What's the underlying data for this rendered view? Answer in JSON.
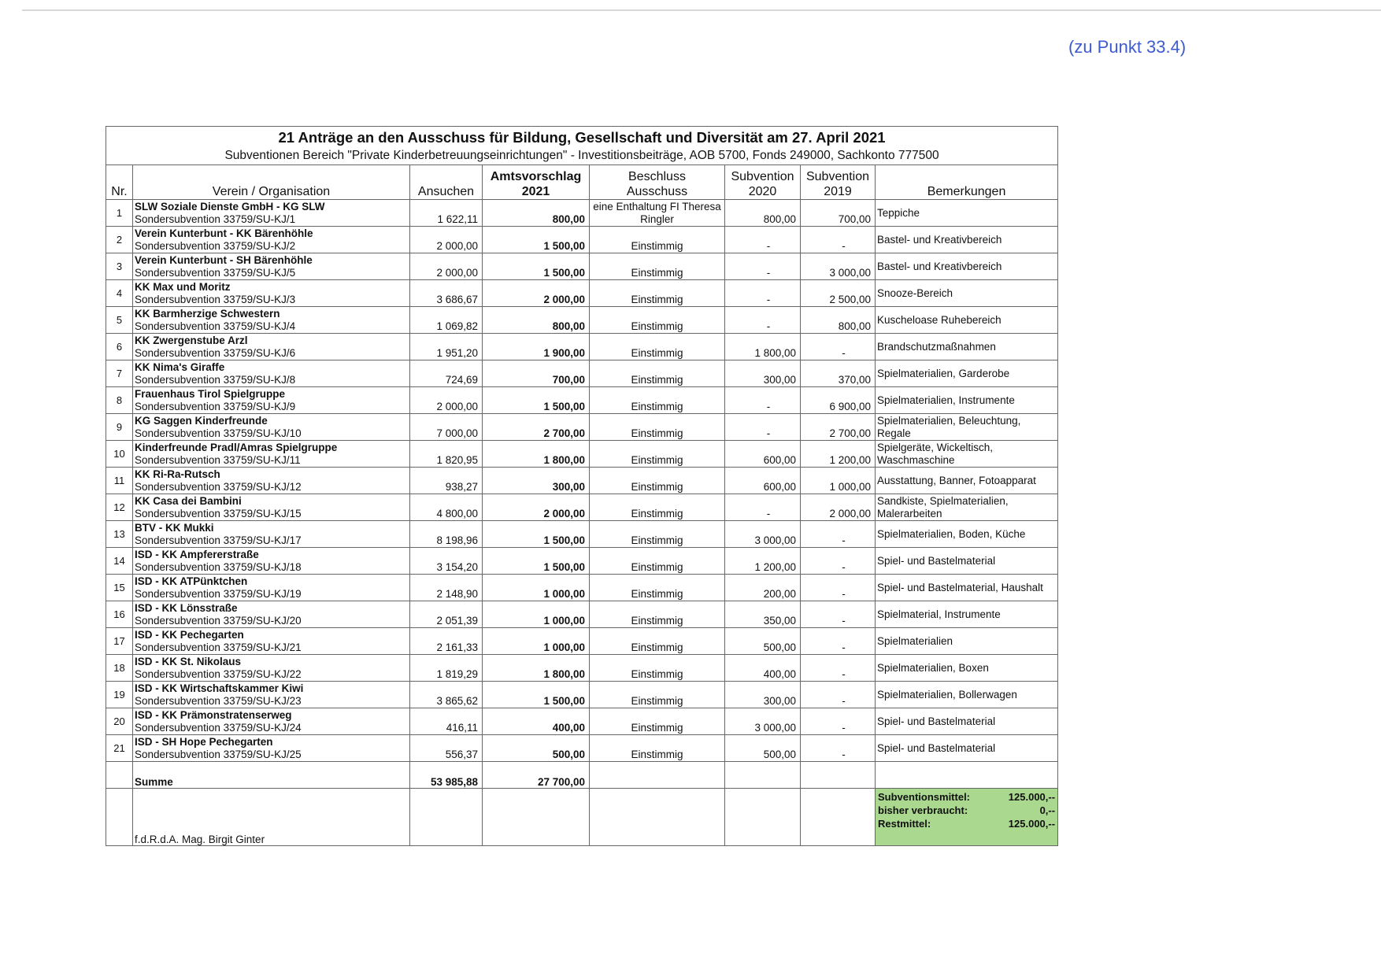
{
  "reference": "(zu Punkt 33.4)",
  "title": "21 Anträge an den Ausschuss für Bildung, Gesellschaft und Diversität am 27. April 2021",
  "subtitle": "Subventionen Bereich \"Private Kinderbetreuungseinrichtungen\" - Investitionsbeiträge, AOB 5700, Fonds 249000, Sachkonto 777500",
  "headers": {
    "nr": "Nr.",
    "org": "Verein / Organisation",
    "ansuchen": "Ansuchen",
    "amts_1": "Amtsvorschlag",
    "amts_2": "2021",
    "beschluss_1": "Beschluss",
    "beschluss_2": "Ausschuss",
    "sub2020_1": "Subvention",
    "sub2020_2": "2020",
    "sub2019_1": "Subvention",
    "sub2019_2": "2019",
    "bemerkungen": "Bemerkungen"
  },
  "rows": [
    {
      "nr": "1",
      "name": "SLW Soziale Dienste GmbH - KG SLW",
      "ref": "Sondersubvention 33759/SU-KJ/1",
      "ansuchen": "1 622,11",
      "amts": "800,00",
      "beschluss": "eine Enthaltung FI Theresa Ringler",
      "sub2020": "800,00",
      "sub2019": "700,00",
      "bem": "Teppiche"
    },
    {
      "nr": "2",
      "name": "Verein Kunterbunt - KK Bärenhöhle",
      "ref": "Sondersubvention 33759/SU-KJ/2",
      "ansuchen": "2 000,00",
      "amts": "1 500,00",
      "beschluss": "Einstimmig",
      "sub2020": "-",
      "sub2019": "-",
      "bem": "Bastel- und Kreativbereich"
    },
    {
      "nr": "3",
      "name": "Verein Kunterbunt - SH Bärenhöhle",
      "ref": "Sondersubvention 33759/SU-KJ/5",
      "ansuchen": "2 000,00",
      "amts": "1 500,00",
      "beschluss": "Einstimmig",
      "sub2020": "-",
      "sub2019": "3 000,00",
      "bem": "Bastel- und Kreativbereich"
    },
    {
      "nr": "4",
      "name": "KK Max und Moritz",
      "ref": "Sondersubvention 33759/SU-KJ/3",
      "ansuchen": "3 686,67",
      "amts": "2 000,00",
      "beschluss": "Einstimmig",
      "sub2020": "-",
      "sub2019": "2 500,00",
      "bem": "Snooze-Bereich"
    },
    {
      "nr": "5",
      "name": "KK Barmherzige Schwestern",
      "ref": "Sondersubvention 33759/SU-KJ/4",
      "ansuchen": "1 069,82",
      "amts": "800,00",
      "beschluss": "Einstimmig",
      "sub2020": "-",
      "sub2019": "800,00",
      "bem": "Kuscheloase Ruhebereich"
    },
    {
      "nr": "6",
      "name": "KK Zwergenstube Arzl",
      "ref": "Sondersubvention 33759/SU-KJ/6",
      "ansuchen": "1 951,20",
      "amts": "1 900,00",
      "beschluss": "Einstimmig",
      "sub2020": "1 800,00",
      "sub2019": "-",
      "bem": "Brandschutzmaßnahmen"
    },
    {
      "nr": "7",
      "name": "KK Nima's Giraffe",
      "ref": "Sondersubvention 33759/SU-KJ/8",
      "ansuchen": "724,69",
      "amts": "700,00",
      "beschluss": "Einstimmig",
      "sub2020": "300,00",
      "sub2019": "370,00",
      "bem": "Spielmaterialien, Garderobe"
    },
    {
      "nr": "8",
      "name": "Frauenhaus Tirol Spielgruppe",
      "ref": "Sondersubvention 33759/SU-KJ/9",
      "ansuchen": "2 000,00",
      "amts": "1 500,00",
      "beschluss": "Einstimmig",
      "sub2020": "-",
      "sub2019": "6 900,00",
      "bem": "Spielmaterialien, Instrumente"
    },
    {
      "nr": "9",
      "name": "KG Saggen Kinderfreunde",
      "ref": "Sondersubvention 33759/SU-KJ/10",
      "ansuchen": "7 000,00",
      "amts": "2 700,00",
      "beschluss": "Einstimmig",
      "sub2020": "-",
      "sub2019": "2 700,00",
      "bem": "Spielmaterialien, Beleuchtung, Regale"
    },
    {
      "nr": "10",
      "name": "Kinderfreunde Pradl/Amras Spielgruppe",
      "ref": "Sondersubvention 33759/SU-KJ/11",
      "ansuchen": "1 820,95",
      "amts": "1 800,00",
      "beschluss": "Einstimmig",
      "sub2020": "600,00",
      "sub2019": "1 200,00",
      "bem": "Spielgeräte, Wickeltisch, Waschmaschine"
    },
    {
      "nr": "11",
      "name": "KK Ri-Ra-Rutsch",
      "ref": "Sondersubvention 33759/SU-KJ/12",
      "ansuchen": "938,27",
      "amts": "300,00",
      "beschluss": "Einstimmig",
      "sub2020": "600,00",
      "sub2019": "1 000,00",
      "bem": "Ausstattung, Banner, Fotoapparat"
    },
    {
      "nr": "12",
      "name": "KK Casa dei Bambini",
      "ref": "Sondersubvention 33759/SU-KJ/15",
      "ansuchen": "4 800,00",
      "amts": "2 000,00",
      "beschluss": "Einstimmig",
      "sub2020": "-",
      "sub2019": "2 000,00",
      "bem": "Sandkiste, Spielmaterialien, Malerarbeiten"
    },
    {
      "nr": "13",
      "name": "BTV - KK Mukki",
      "ref": "Sondersubvention 33759/SU-KJ/17",
      "ansuchen": "8 198,96",
      "amts": "1 500,00",
      "beschluss": "Einstimmig",
      "sub2020": "3 000,00",
      "sub2019": "-",
      "bem": "Spielmaterialien, Boden, Küche"
    },
    {
      "nr": "14",
      "name": "ISD - KK Ampfererstraße",
      "ref": "Sondersubvention 33759/SU-KJ/18",
      "ansuchen": "3 154,20",
      "amts": "1 500,00",
      "beschluss": "Einstimmig",
      "sub2020": "1 200,00",
      "sub2019": "-",
      "bem": "Spiel- und Bastelmaterial"
    },
    {
      "nr": "15",
      "name": "ISD - KK ATPünktchen",
      "ref": "Sondersubvention 33759/SU-KJ/19",
      "ansuchen": "2 148,90",
      "amts": "1 000,00",
      "beschluss": "Einstimmig",
      "sub2020": "200,00",
      "sub2019": "-",
      "bem": "Spiel- und Bastelmaterial, Haushalt"
    },
    {
      "nr": "16",
      "name": "ISD - KK Lönsstraße",
      "ref": "Sondersubvention 33759/SU-KJ/20",
      "ansuchen": "2 051,39",
      "amts": "1 000,00",
      "beschluss": "Einstimmig",
      "sub2020": "350,00",
      "sub2019": "-",
      "bem": "Spielmaterial, Instrumente"
    },
    {
      "nr": "17",
      "name": "ISD - KK Pechegarten",
      "ref": "Sondersubvention 33759/SU-KJ/21",
      "ansuchen": "2 161,33",
      "amts": "1 000,00",
      "beschluss": "Einstimmig",
      "sub2020": "500,00",
      "sub2019": "-",
      "bem": "Spielmaterialien"
    },
    {
      "nr": "18",
      "name": "ISD - KK St. Nikolaus",
      "ref": "Sondersubvention 33759/SU-KJ/22",
      "ansuchen": "1 819,29",
      "amts": "1 800,00",
      "beschluss": "Einstimmig",
      "sub2020": "400,00",
      "sub2019": "-",
      "bem": "Spielmaterialien, Boxen"
    },
    {
      "nr": "19",
      "name": "ISD - KK Wirtschaftskammer Kiwi",
      "ref": "Sondersubvention 33759/SU-KJ/23",
      "ansuchen": "3 865,62",
      "amts": "1 500,00",
      "beschluss": "Einstimmig",
      "sub2020": "300,00",
      "sub2019": "-",
      "bem": "Spielmaterialien, Bollerwagen"
    },
    {
      "nr": "20",
      "name": "ISD - KK Prämonstratenserweg",
      "ref": "Sondersubvention 33759/SU-KJ/24",
      "ansuchen": "416,11",
      "amts": "400,00",
      "beschluss": "Einstimmig",
      "sub2020": "3 000,00",
      "sub2019": "-",
      "bem": "Spiel- und Bastelmaterial"
    },
    {
      "nr": "21",
      "name": "ISD - SH Hope Pechegarten",
      "ref": "Sondersubvention 33759/SU-KJ/25",
      "ansuchen": "556,37",
      "amts": "500,00",
      "beschluss": "Einstimmig",
      "sub2020": "500,00",
      "sub2019": "-",
      "bem": "Spiel- und Bastelmaterial"
    }
  ],
  "summe": {
    "label": "Summe",
    "ansuchen": "53 985,88",
    "amts": "27 700,00"
  },
  "signature": "f.d.R.d.A. Mag. Birgit Ginter",
  "budget": {
    "color": "#a9d88e",
    "lines": [
      {
        "label": "Subventionsmittel:",
        "value": "125.000,--"
      },
      {
        "label": "bisher verbraucht:",
        "value": "0,--"
      },
      {
        "label": "Restmittel:",
        "value": "125.000,--"
      }
    ]
  }
}
